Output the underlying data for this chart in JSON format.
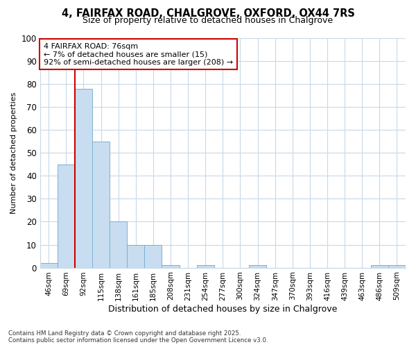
{
  "title_line1": "4, FAIRFAX ROAD, CHALGROVE, OXFORD, OX44 7RS",
  "title_line2": "Size of property relative to detached houses in Chalgrove",
  "xlabel": "Distribution of detached houses by size in Chalgrove",
  "ylabel": "Number of detached properties",
  "bar_labels": [
    "46sqm",
    "69sqm",
    "92sqm",
    "115sqm",
    "138sqm",
    "161sqm",
    "185sqm",
    "208sqm",
    "231sqm",
    "254sqm",
    "277sqm",
    "300sqm",
    "324sqm",
    "347sqm",
    "370sqm",
    "393sqm",
    "416sqm",
    "439sqm",
    "463sqm",
    "486sqm",
    "509sqm"
  ],
  "bar_values": [
    2,
    45,
    78,
    55,
    20,
    10,
    10,
    1,
    0,
    1,
    0,
    0,
    1,
    0,
    0,
    0,
    0,
    0,
    0,
    1,
    1
  ],
  "bar_color": "#c8ddf0",
  "bar_edgecolor": "#7aafd4",
  "grid_color": "#c8d8e8",
  "background_color": "#ffffff",
  "vline_color": "#cc0000",
  "vline_x_index": 1.5,
  "annotation_text": "4 FAIRFAX ROAD: 76sqm\n← 7% of detached houses are smaller (15)\n92% of semi-detached houses are larger (208) →",
  "annotation_box_edgecolor": "#cc0000",
  "annotation_box_facecolor": "#ffffff",
  "footer_line1": "Contains HM Land Registry data © Crown copyright and database right 2025.",
  "footer_line2": "Contains public sector information licensed under the Open Government Licence v3.0.",
  "ylim": [
    0,
    100
  ],
  "yticks": [
    0,
    10,
    20,
    30,
    40,
    50,
    60,
    70,
    80,
    90,
    100
  ]
}
